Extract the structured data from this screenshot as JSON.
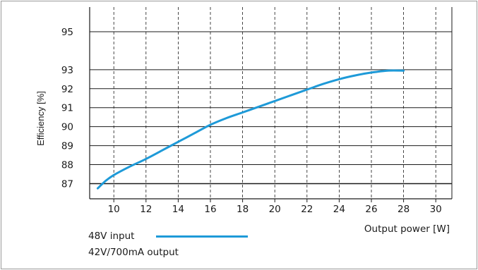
{
  "chart_data": {
    "type": "line",
    "title": "",
    "xlabel": "Output power [W]",
    "ylabel": "Efficiency [%]",
    "xlim": [
      8.5,
      31
    ],
    "ylim": [
      86.2,
      96.3
    ],
    "xticks": [
      10,
      12,
      14,
      16,
      18,
      20,
      22,
      24,
      26,
      28,
      30
    ],
    "yticks": [
      87,
      88,
      89,
      90,
      91,
      92,
      93,
      95
    ],
    "grid": "vertical dashed, horizontal solid",
    "legend_position": "bottom-left",
    "legend": {
      "line1": "48V input",
      "line2": "42V/700mA output"
    },
    "series": [
      {
        "name": "48V input",
        "color": "#1e9ad8",
        "x": [
          9,
          9.5,
          10,
          11,
          12,
          13,
          14,
          15,
          16,
          17,
          18,
          19,
          20,
          21,
          22,
          23,
          24,
          25,
          26,
          27,
          28
        ],
        "y": [
          86.75,
          87.15,
          87.45,
          87.9,
          88.3,
          88.75,
          89.2,
          89.65,
          90.1,
          90.45,
          90.75,
          91.05,
          91.35,
          91.65,
          91.95,
          92.25,
          92.5,
          92.7,
          92.85,
          92.95,
          92.95
        ]
      }
    ]
  }
}
